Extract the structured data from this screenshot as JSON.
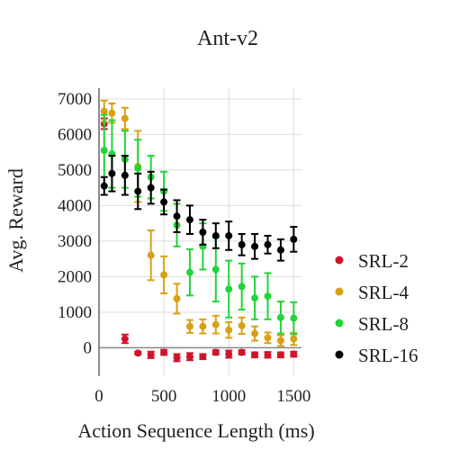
{
  "chart_data": {
    "type": "scatter",
    "title": "Ant-v2",
    "xlabel": "Action Sequence Length (ms)",
    "ylabel": "Avg. Reward",
    "xlim": [
      0,
      1560
    ],
    "ylim": [
      -800,
      7300
    ],
    "xticks": [
      0,
      500,
      1000,
      1500
    ],
    "yticks": [
      0,
      1000,
      2000,
      3000,
      4000,
      5000,
      6000,
      7000
    ],
    "grid": true,
    "legend_position": "right",
    "series": [
      {
        "name": "SRL-2",
        "color": "#d0142c",
        "x": [
          40,
          200,
          300,
          400,
          500,
          600,
          700,
          800,
          900,
          1000,
          1100,
          1200,
          1300,
          1400,
          1500
        ],
        "y": [
          6300,
          250,
          -150,
          -200,
          -130,
          -280,
          -250,
          -250,
          -130,
          -180,
          -130,
          -200,
          -200,
          -200,
          -180
        ],
        "err": [
          150,
          120,
          40,
          90,
          70,
          100,
          100,
          70,
          60,
          100,
          60,
          70,
          80,
          70,
          70
        ]
      },
      {
        "name": "SRL-4",
        "color": "#d8a016",
        "x": [
          40,
          100,
          200,
          300,
          400,
          500,
          600,
          700,
          800,
          900,
          1000,
          1100,
          1200,
          1300,
          1400,
          1500
        ],
        "y": [
          6650,
          6600,
          6450,
          5100,
          2600,
          2050,
          1380,
          600,
          600,
          650,
          500,
          620,
          400,
          280,
          200,
          250
        ],
        "err": [
          300,
          270,
          300,
          1000,
          700,
          520,
          420,
          180,
          200,
          250,
          220,
          230,
          200,
          150,
          150,
          170
        ]
      },
      {
        "name": "SRL-8",
        "color": "#22d438",
        "x": [
          40,
          100,
          200,
          300,
          400,
          500,
          600,
          700,
          800,
          900,
          1000,
          1100,
          1200,
          1300,
          1400,
          1500
        ],
        "y": [
          5550,
          5450,
          5300,
          5050,
          4800,
          4400,
          3450,
          2120,
          2850,
          2200,
          1650,
          1720,
          1400,
          1450,
          850,
          830
        ],
        "err": [
          1000,
          950,
          800,
          800,
          600,
          550,
          600,
          650,
          650,
          900,
          800,
          650,
          600,
          650,
          450,
          450
        ]
      },
      {
        "name": "SRL-16",
        "color": "#000000",
        "x": [
          40,
          100,
          200,
          300,
          400,
          500,
          600,
          700,
          800,
          900,
          1000,
          1100,
          1200,
          1300,
          1400,
          1500
        ],
        "y": [
          4550,
          4900,
          4850,
          4400,
          4500,
          4100,
          3700,
          3600,
          3250,
          3150,
          3150,
          2900,
          2850,
          2900,
          2750,
          3050
        ],
        "err": [
          250,
          500,
          550,
          500,
          450,
          350,
          450,
          400,
          350,
          350,
          400,
          300,
          350,
          250,
          300,
          350
        ]
      }
    ]
  }
}
